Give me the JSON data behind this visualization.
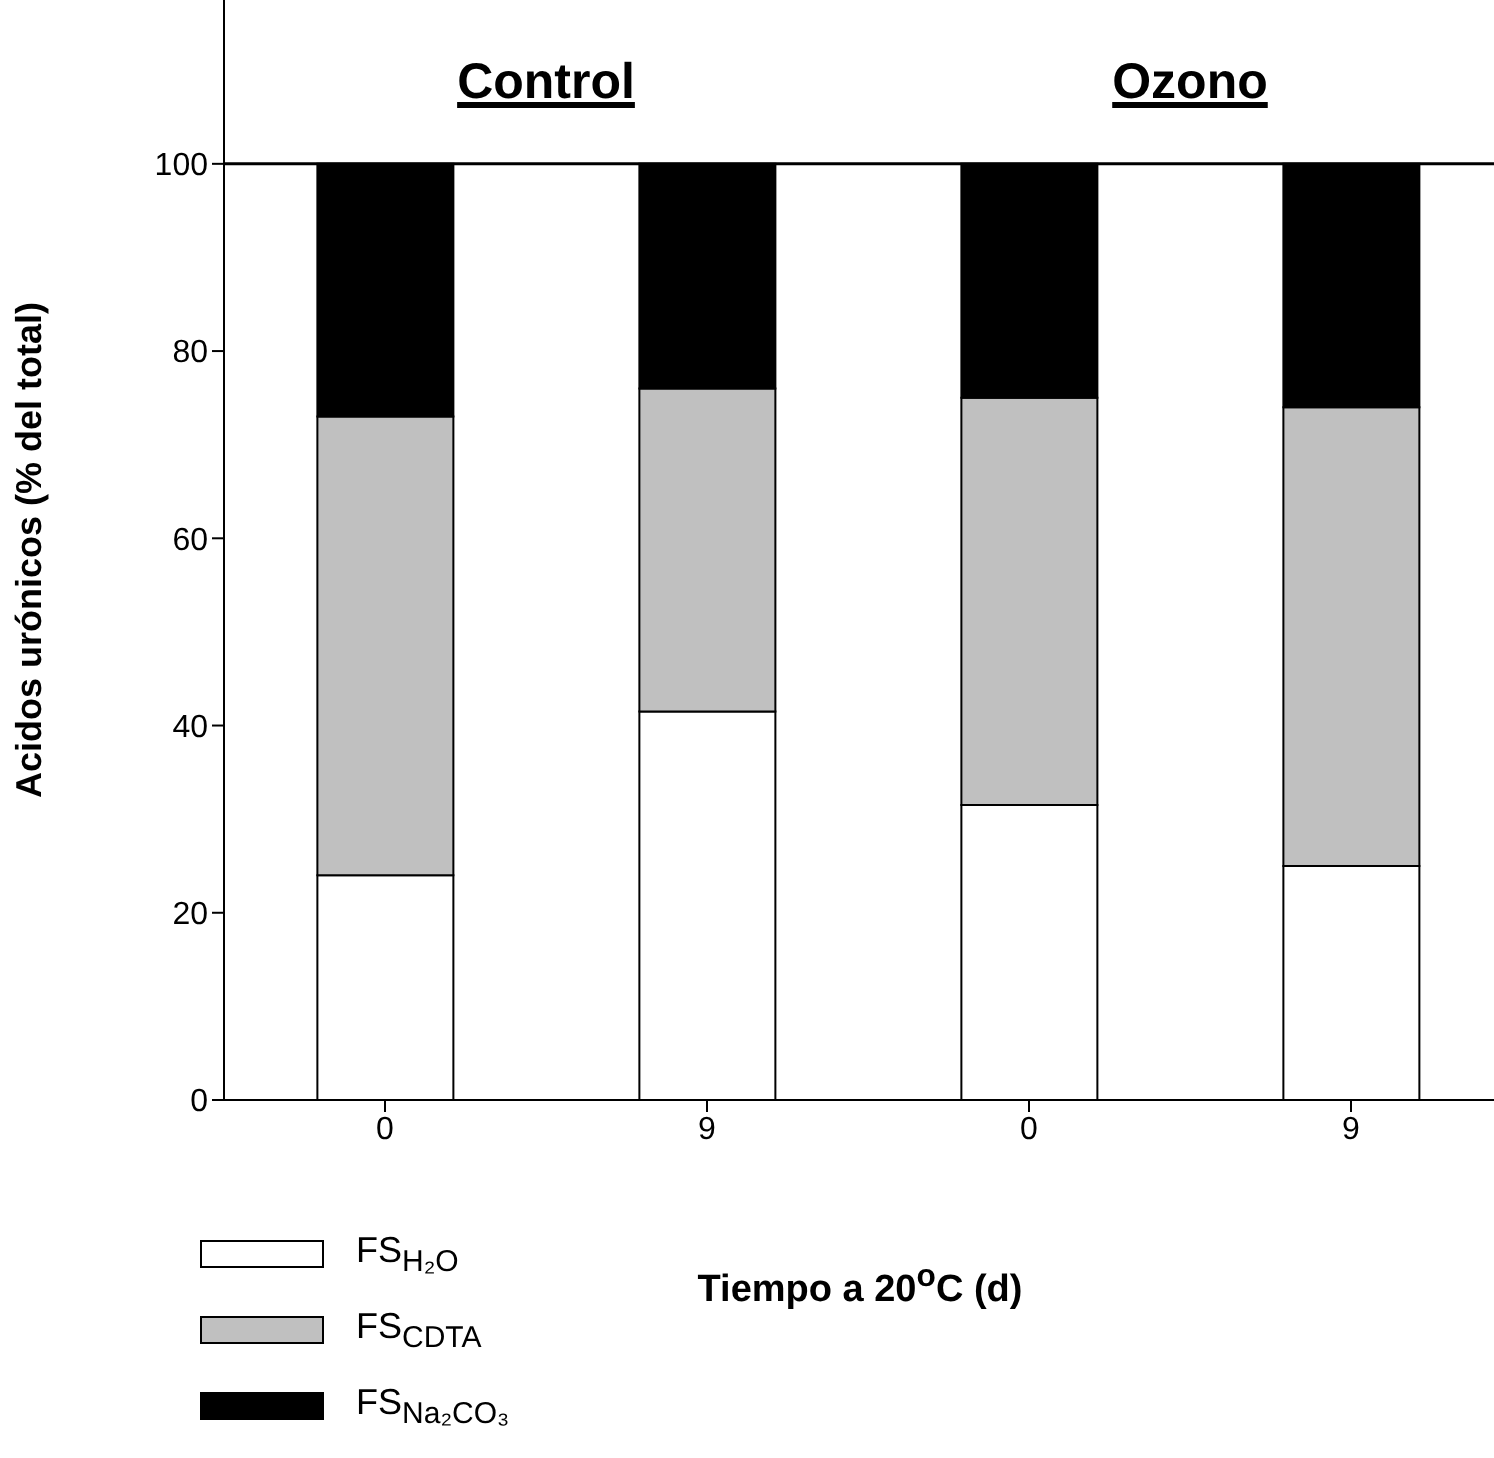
{
  "chart_data": [
    {
      "type": "bar",
      "title": "Control",
      "ylabel": "Acidos urónicos (% del total)",
      "xlabel": "Tiempo a 20$^{o}$C (d)",
      "categories": [
        "0",
        "9"
      ],
      "stacked": true,
      "ylim": [
        0,
        117.5
      ],
      "yticks": [
        0,
        20,
        40,
        60,
        80,
        100
      ],
      "legend": "bottom left",
      "ref_lines": [
        {
          "axis": "y",
          "value": 100,
          "color": "#000000"
        }
      ],
      "series": [
        {
          "name": "FS$_{H₂O}$",
          "color": "#ffffff",
          "values": [
            24,
            41.5
          ]
        },
        {
          "name": "FS$_{CDTA}$",
          "color": "#c0c0c0",
          "values": [
            49,
            34.5
          ]
        },
        {
          "name": "FS$_{Na₂CO₃}$",
          "color": "#000000",
          "values": [
            27,
            24
          ]
        }
      ]
    },
    {
      "type": "bar",
      "title": "Ozono",
      "categories": [
        "0",
        "9"
      ],
      "stacked": true,
      "ylim": [
        0,
        117.5
      ],
      "yticks": [
        0,
        20,
        40,
        60,
        80,
        100
      ],
      "tick_labels": "x",
      "ref_lines": [
        {
          "axis": "y",
          "value": 100,
          "color": "#000000"
        }
      ],
      "series": [
        {
          "color": "#ffffff",
          "values": [
            31.5,
            25
          ]
        },
        {
          "color": "#c0c0c0",
          "values": [
            43.5,
            49
          ]
        },
        {
          "color": "#000000",
          "values": [
            25,
            26
          ]
        }
      ]
    }
  ]
}
